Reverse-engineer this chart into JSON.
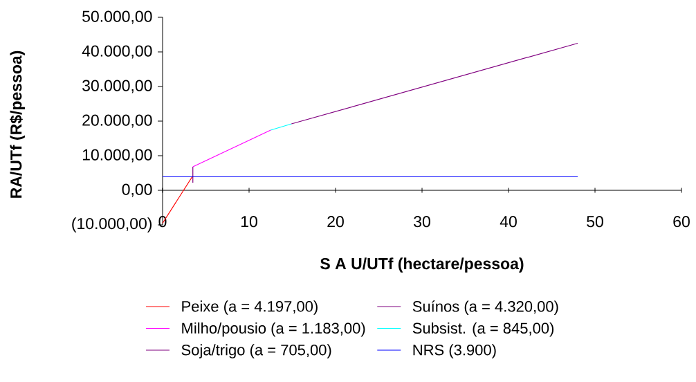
{
  "chart_data": {
    "type": "line",
    "xlabel": "S A U/UTf (hectare/pessoa)",
    "ylabel": "RA/UTf (R$/pessoa)",
    "xlim": [
      0,
      60
    ],
    "xticks": [
      0,
      10,
      20,
      30,
      40,
      50,
      60
    ],
    "ylim": [
      -10000,
      50000
    ],
    "yticks": [
      {
        "value": -10000,
        "label": "(10.000,00)"
      },
      {
        "value": 0,
        "label": "0,00"
      },
      {
        "value": 10000,
        "label": "10.000,00"
      },
      {
        "value": 20000,
        "label": "20.000,00"
      },
      {
        "value": 30000,
        "label": "30.000,00"
      },
      {
        "value": 40000,
        "label": "40.000,00"
      },
      {
        "value": 50000,
        "label": "50.000,00"
      }
    ],
    "legend": "bottom",
    "grid": false,
    "marker": "none",
    "line_style": "solid",
    "series": [
      {
        "name": "Peixe (a = 4.197,00)",
        "color": "#ff0000",
        "x": [
          0,
          3.5
        ],
        "values": [
          -9500,
          4200
        ]
      },
      {
        "name": "Suínos (a = 4.320,00)",
        "color": "#800080",
        "x": [
          3.5,
          3.5
        ],
        "values": [
          2200,
          6800
        ]
      },
      {
        "name": "Milho/pousio (a = 1.183,00)",
        "color": "#ff00ff",
        "x": [
          3.5,
          12.5
        ],
        "values": [
          6800,
          17400
        ]
      },
      {
        "name": "Subsist. (a = 845,00)",
        "color": "#00ffff",
        "x": [
          12.5,
          14.9
        ],
        "values": [
          17400,
          19200
        ]
      },
      {
        "name": "Soja/trigo (a = 705,00)",
        "color": "#800080",
        "x": [
          14.9,
          48
        ],
        "values": [
          19200,
          42500
        ]
      },
      {
        "name": "NRS (3.900)",
        "color": "#0000ff",
        "x": [
          0,
          48
        ],
        "values": [
          3900,
          3900
        ]
      }
    ]
  }
}
